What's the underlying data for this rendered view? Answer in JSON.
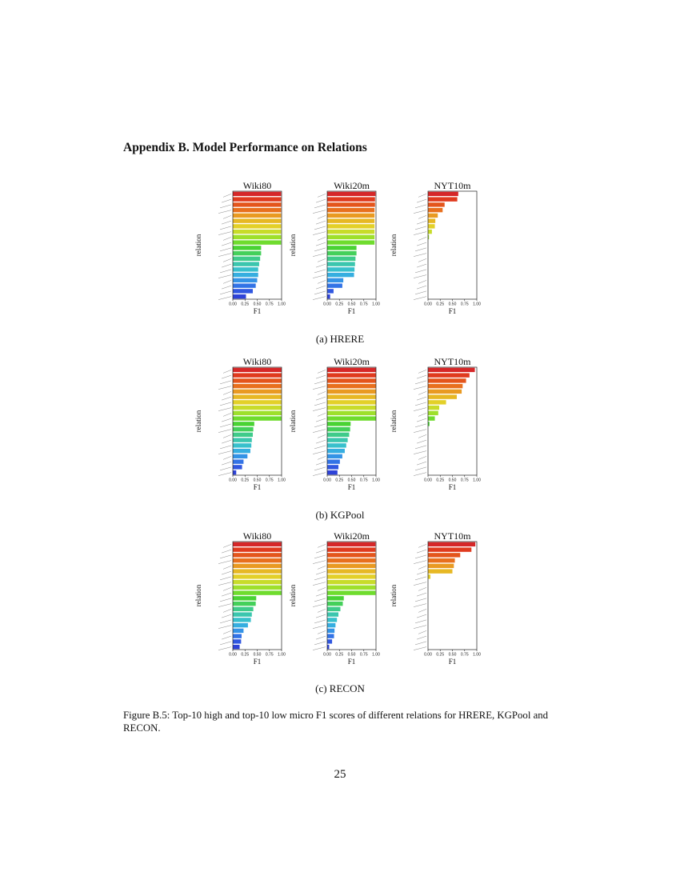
{
  "section_heading": "Appendix B.  Model Performance on Relations",
  "figure_caption": "Figure B.5: Top-10 high and top-10 low micro F1 scores of different relations for HRERE, KGPool and RECON.",
  "page_number": "25",
  "colors": {
    "palette": [
      "#d62728",
      "#e03a1e",
      "#e4551c",
      "#e8701e",
      "#e99a22",
      "#e7b824",
      "#e3d028",
      "#c8dc2a",
      "#9ee02c",
      "#6fdc2e",
      "#49d334",
      "#44d05a",
      "#3fcb8a",
      "#3bc6ae",
      "#38c0cc",
      "#36aee0",
      "#3493e6",
      "#3273e6",
      "#3057e0",
      "#2e43d8"
    ]
  },
  "figures": [
    {
      "subcaption": "(a)  HRERE",
      "chart_data": [
        {
          "type": "bar",
          "orientation": "horizontal",
          "title": "Wiki80",
          "xlabel": "F1",
          "ylabel": "relation",
          "xlim": [
            0,
            1
          ],
          "xticks": [
            "0.00",
            "0.25",
            "0.50",
            "0.75",
            "1.00"
          ],
          "values": [
            0.99,
            0.99,
            0.99,
            0.99,
            0.99,
            0.99,
            0.99,
            0.99,
            0.99,
            0.99,
            0.58,
            0.58,
            0.56,
            0.54,
            0.52,
            0.52,
            0.5,
            0.47,
            0.41,
            0.27
          ]
        },
        {
          "type": "bar",
          "orientation": "horizontal",
          "title": "Wiki20m",
          "xlabel": "F1",
          "ylabel": "relation",
          "xlim": [
            0,
            1
          ],
          "xticks": [
            "0.00",
            "0.25",
            "0.50",
            "0.75",
            "1.00"
          ],
          "values": [
            0.99,
            0.98,
            0.98,
            0.97,
            0.97,
            0.97,
            0.97,
            0.97,
            0.97,
            0.97,
            0.6,
            0.6,
            0.58,
            0.57,
            0.56,
            0.55,
            0.33,
            0.31,
            0.13,
            0.06
          ]
        },
        {
          "type": "bar",
          "orientation": "horizontal",
          "title": "NYT10m",
          "xlabel": "F1",
          "ylabel": "relation",
          "xlim": [
            0,
            1
          ],
          "xticks": [
            "0.00",
            "0.25",
            "0.50",
            "0.75",
            "1.00"
          ],
          "values": [
            0.62,
            0.6,
            0.34,
            0.3,
            0.2,
            0.15,
            0.14,
            0.08,
            0.02,
            0.0,
            0.0,
            0.0,
            0.0,
            0.0,
            0.0,
            0.0,
            0.0,
            0.0,
            0.0,
            0.0
          ]
        }
      ]
    },
    {
      "subcaption": "(b)  KGPool",
      "chart_data": [
        {
          "type": "bar",
          "orientation": "horizontal",
          "title": "Wiki80",
          "xlabel": "F1",
          "ylabel": "relation",
          "xlim": [
            0,
            1
          ],
          "xticks": [
            "0.00",
            "0.25",
            "0.50",
            "0.75",
            "1.00"
          ],
          "values": [
            1.0,
            1.0,
            1.0,
            1.0,
            1.0,
            1.0,
            1.0,
            1.0,
            1.0,
            1.0,
            0.44,
            0.42,
            0.41,
            0.39,
            0.38,
            0.36,
            0.3,
            0.22,
            0.19,
            0.07
          ]
        },
        {
          "type": "bar",
          "orientation": "horizontal",
          "title": "Wiki20m",
          "xlabel": "F1",
          "ylabel": "relation",
          "xlim": [
            0,
            1
          ],
          "xticks": [
            "0.00",
            "0.25",
            "0.50",
            "0.75",
            "1.00"
          ],
          "values": [
            1.0,
            1.0,
            1.0,
            1.0,
            1.0,
            1.0,
            1.0,
            1.0,
            1.0,
            1.0,
            0.48,
            0.47,
            0.45,
            0.42,
            0.39,
            0.36,
            0.31,
            0.26,
            0.23,
            0.21
          ]
        },
        {
          "type": "bar",
          "orientation": "horizontal",
          "title": "NYT10m",
          "xlabel": "F1",
          "ylabel": "relation",
          "xlim": [
            0,
            1
          ],
          "xticks": [
            "0.00",
            "0.25",
            "0.50",
            "0.75",
            "1.00"
          ],
          "values": [
            0.96,
            0.85,
            0.78,
            0.71,
            0.69,
            0.59,
            0.37,
            0.23,
            0.21,
            0.14,
            0.03,
            0.0,
            0.0,
            0.0,
            0.0,
            0.0,
            0.0,
            0.0,
            0.0,
            0.0
          ]
        }
      ]
    },
    {
      "subcaption": "(c)  RECON",
      "chart_data": [
        {
          "type": "bar",
          "orientation": "horizontal",
          "title": "Wiki80",
          "xlabel": "F1",
          "ylabel": "relation",
          "xlim": [
            0,
            1
          ],
          "xticks": [
            "0.00",
            "0.25",
            "0.50",
            "0.75",
            "1.00"
          ],
          "values": [
            1.0,
            1.0,
            1.0,
            1.0,
            1.0,
            1.0,
            1.0,
            1.0,
            1.0,
            1.0,
            0.48,
            0.47,
            0.42,
            0.39,
            0.37,
            0.31,
            0.22,
            0.18,
            0.17,
            0.14
          ]
        },
        {
          "type": "bar",
          "orientation": "horizontal",
          "title": "Wiki20m",
          "xlabel": "F1",
          "ylabel": "relation",
          "xlim": [
            0,
            1
          ],
          "xticks": [
            "0.00",
            "0.25",
            "0.50",
            "0.75",
            "1.00"
          ],
          "values": [
            0.99,
            0.99,
            0.99,
            0.99,
            0.99,
            0.99,
            0.99,
            0.99,
            0.99,
            0.99,
            0.34,
            0.32,
            0.27,
            0.23,
            0.2,
            0.17,
            0.15,
            0.14,
            0.1,
            0.04
          ]
        },
        {
          "type": "bar",
          "orientation": "horizontal",
          "title": "NYT10m",
          "xlabel": "F1",
          "ylabel": "relation",
          "xlim": [
            0,
            1
          ],
          "xticks": [
            "0.00",
            "0.25",
            "0.50",
            "0.75",
            "1.00"
          ],
          "values": [
            0.97,
            0.89,
            0.66,
            0.55,
            0.53,
            0.5,
            0.05,
            0.0,
            0.0,
            0.0,
            0.0,
            0.0,
            0.0,
            0.0,
            0.0,
            0.0,
            0.0,
            0.0,
            0.0,
            0.0
          ]
        }
      ]
    }
  ]
}
